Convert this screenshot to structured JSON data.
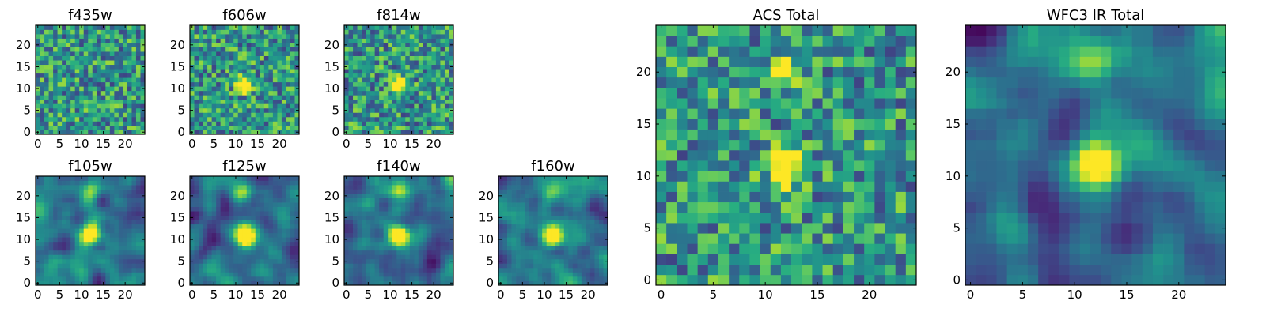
{
  "chart_data": [
    {
      "type": "heatmap",
      "title": "f435w",
      "xticks": [
        "0",
        "5",
        "10",
        "15",
        "20"
      ],
      "yticks": [
        "0",
        "5",
        "10",
        "15",
        "20"
      ],
      "xlim": [
        -0.5,
        24.5
      ],
      "ylim": [
        -0.5,
        24.5
      ],
      "grid": false,
      "colormap": "viridis",
      "pattern": "noise",
      "bright_spots": []
    },
    {
      "type": "heatmap",
      "title": "f606w",
      "xticks": [
        "0",
        "5",
        "10",
        "15",
        "20"
      ],
      "yticks": [
        "0",
        "5",
        "10",
        "15",
        "20"
      ],
      "xlim": [
        -0.5,
        24.5
      ],
      "ylim": [
        -0.5,
        24.5
      ],
      "grid": false,
      "colormap": "viridis",
      "pattern": "noise",
      "bright_spots": [
        [
          12,
          11
        ]
      ]
    },
    {
      "type": "heatmap",
      "title": "f814w",
      "xticks": [
        "0",
        "5",
        "10",
        "15",
        "20"
      ],
      "yticks": [
        "0",
        "5",
        "10",
        "15",
        "20"
      ],
      "xlim": [
        -0.5,
        24.5
      ],
      "ylim": [
        -0.5,
        24.5
      ],
      "grid": false,
      "colormap": "viridis",
      "pattern": "noise",
      "bright_spots": [
        [
          12,
          11
        ]
      ]
    },
    {
      "type": "heatmap",
      "title": "f105w",
      "xticks": [
        "0",
        "5",
        "10",
        "15",
        "20"
      ],
      "yticks": [
        "0",
        "5",
        "10",
        "15",
        "20"
      ],
      "xlim": [
        -0.5,
        24.5
      ],
      "ylim": [
        -0.5,
        24.5
      ],
      "grid": false,
      "colormap": "viridis",
      "pattern": "smooth",
      "bright_spots": [
        [
          12,
          11
        ],
        [
          12,
          21
        ]
      ]
    },
    {
      "type": "heatmap",
      "title": "f125w",
      "xticks": [
        "0",
        "5",
        "10",
        "15",
        "20"
      ],
      "yticks": [
        "0",
        "5",
        "10",
        "15",
        "20"
      ],
      "xlim": [
        -0.5,
        24.5
      ],
      "ylim": [
        -0.5,
        24.5
      ],
      "grid": false,
      "colormap": "viridis",
      "pattern": "smooth",
      "bright_spots": [
        [
          12,
          11
        ],
        [
          12,
          21
        ]
      ]
    },
    {
      "type": "heatmap",
      "title": "f140w",
      "xticks": [
        "0",
        "5",
        "10",
        "15",
        "20"
      ],
      "yticks": [
        "0",
        "5",
        "10",
        "15",
        "20"
      ],
      "xlim": [
        -0.5,
        24.5
      ],
      "ylim": [
        -0.5,
        24.5
      ],
      "grid": false,
      "colormap": "viridis",
      "pattern": "smooth",
      "bright_spots": [
        [
          12,
          11
        ],
        [
          12,
          21
        ]
      ]
    },
    {
      "type": "heatmap",
      "title": "f160w",
      "xticks": [
        "0",
        "5",
        "10",
        "15",
        "20"
      ],
      "yticks": [
        "0",
        "5",
        "10",
        "15",
        "20"
      ],
      "xlim": [
        -0.5,
        24.5
      ],
      "ylim": [
        -0.5,
        24.5
      ],
      "grid": false,
      "colormap": "viridis",
      "pattern": "smooth",
      "bright_spots": [
        [
          12,
          11
        ],
        [
          12,
          21
        ]
      ]
    },
    {
      "type": "heatmap",
      "title": "ACS Total",
      "xticks": [
        "0",
        "5",
        "10",
        "15",
        "20"
      ],
      "yticks": [
        "0",
        "5",
        "10",
        "15",
        "20"
      ],
      "xlim": [
        -0.5,
        24.5
      ],
      "ylim": [
        -0.5,
        24.5
      ],
      "grid": false,
      "colormap": "viridis",
      "pattern": "noise",
      "bright_spots": [
        [
          12,
          11
        ],
        [
          12,
          20
        ]
      ]
    },
    {
      "type": "heatmap",
      "title": "WFC3 IR Total",
      "xticks": [
        "0",
        "5",
        "10",
        "15",
        "20"
      ],
      "yticks": [
        "0",
        "5",
        "10",
        "15",
        "20"
      ],
      "xlim": [
        -0.5,
        24.5
      ],
      "ylim": [
        -0.5,
        24.5
      ],
      "grid": false,
      "colormap": "viridis",
      "pattern": "smooth",
      "bright_spots": [
        [
          12,
          11
        ],
        [
          12,
          21
        ]
      ]
    }
  ]
}
